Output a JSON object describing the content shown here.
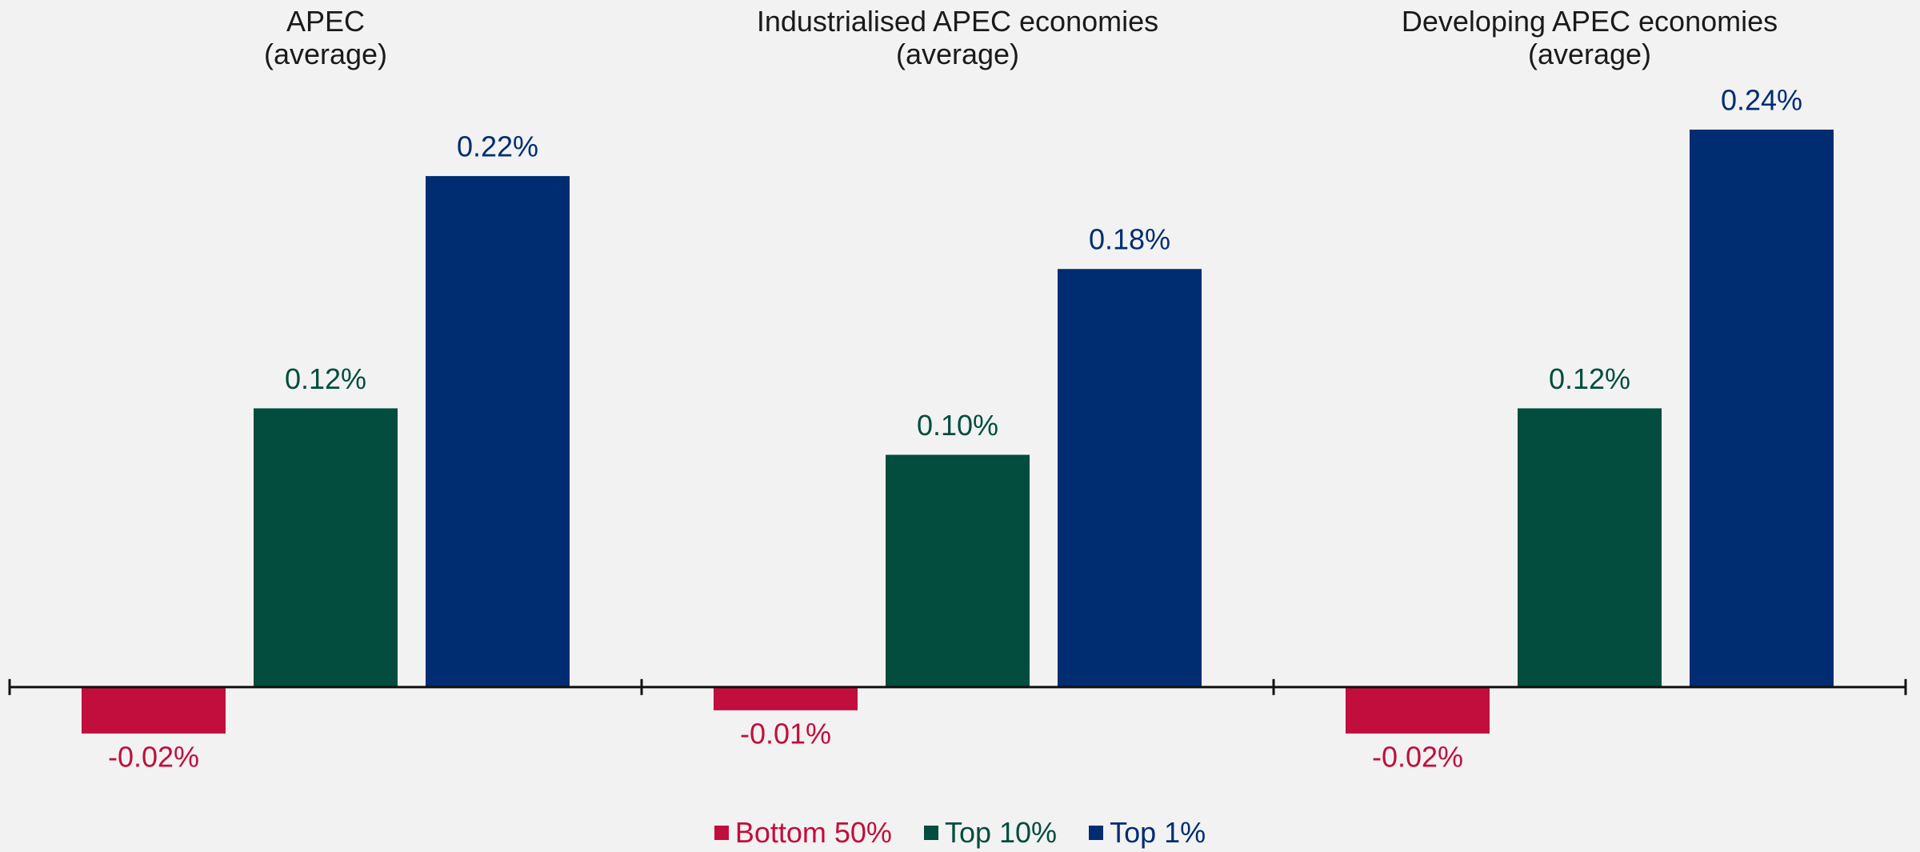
{
  "chart_data": {
    "type": "bar",
    "categories": [
      "APEC\n(average)",
      "Industrialised APEC economies\n(average)",
      "Developing APEC economies\n(average)"
    ],
    "series": [
      {
        "name": "Bottom 50%",
        "color": "#c20e3c",
        "values": [
          -0.02,
          -0.01,
          -0.02
        ],
        "value_labels": [
          "-0.02%",
          "-0.01%",
          "-0.02%"
        ]
      },
      {
        "name": "Top 10%",
        "color": "#024d3e",
        "values": [
          0.12,
          0.1,
          0.12
        ],
        "value_labels": [
          "0.12%",
          "0.10%",
          "0.12%"
        ]
      },
      {
        "name": "Top 1%",
        "color": "#002d72",
        "values": [
          0.22,
          0.18,
          0.24
        ],
        "value_labels": [
          "0.22%",
          "0.18%",
          "0.24%"
        ]
      }
    ],
    "ylim": [
      -0.05,
      0.25
    ],
    "legend": "bottom"
  }
}
